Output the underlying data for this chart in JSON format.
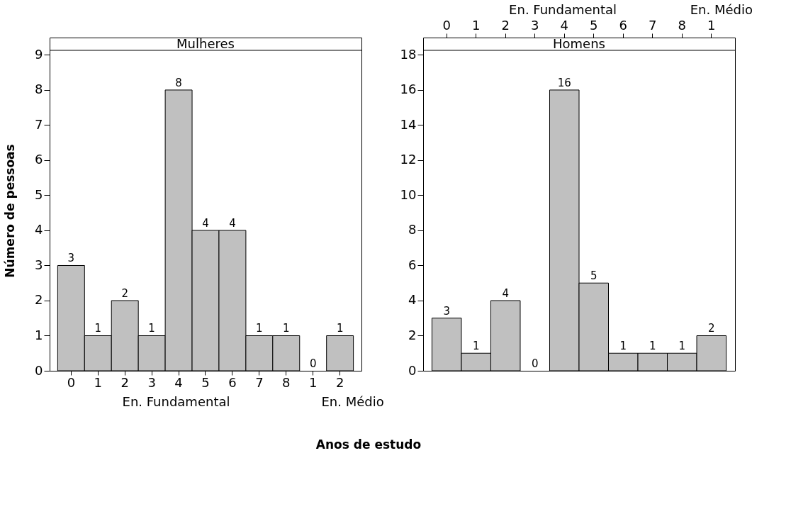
{
  "chart_data": [
    {
      "type": "bar",
      "title": "Mulheres",
      "ylabel": "Número de pessoas",
      "xlabel": "Anos de estudo",
      "categories": [
        "0",
        "1",
        "2",
        "3",
        "4",
        "5",
        "6",
        "7",
        "8",
        "1",
        "2"
      ],
      "values": [
        3,
        1,
        2,
        1,
        8,
        4,
        4,
        1,
        1,
        0,
        1
      ],
      "color": "#c0c0c0",
      "ylim": [
        0,
        9.13
      ],
      "yticks": [
        0,
        1,
        2,
        3,
        4,
        5,
        6,
        7,
        8,
        9
      ],
      "grid": false,
      "data_labels": true,
      "annotations": [
        "En. Fundamental",
        "En. Médio"
      ]
    },
    {
      "type": "bar",
      "title": "Homens",
      "categories": [
        "0",
        "1",
        "2",
        "3",
        "4",
        "5",
        "6",
        "7",
        "8",
        "1"
      ],
      "values": [
        3,
        1,
        4,
        0,
        16,
        5,
        1,
        1,
        1,
        2
      ],
      "color": "#c0c0c0",
      "ylim": [
        0,
        18.26
      ],
      "yticks": [
        0,
        2,
        4,
        6,
        8,
        10,
        12,
        14,
        16,
        18
      ],
      "grid": false,
      "data_labels": true,
      "annotations": [
        "En. Fundamental",
        "En. Médio"
      ]
    }
  ]
}
